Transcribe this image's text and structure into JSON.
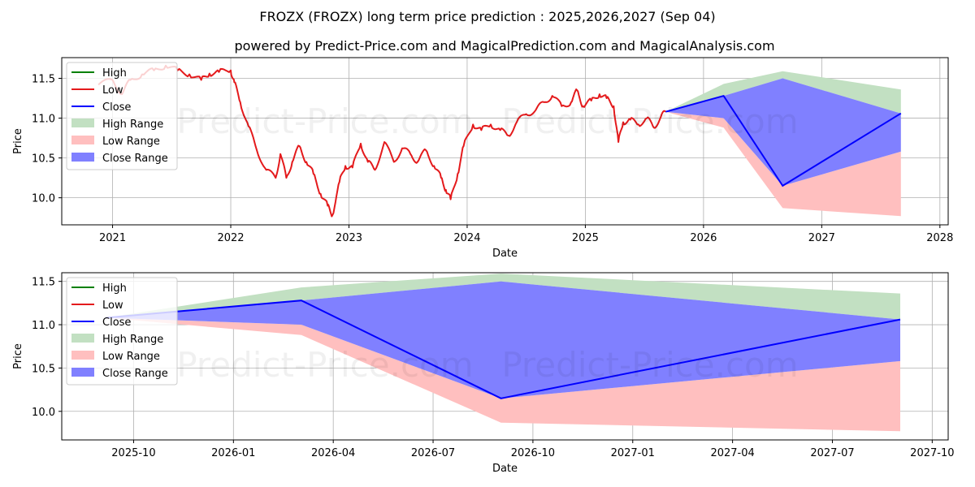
{
  "title": "FROZX (FROZX) long term price prediction : 2025,2026,2027 (Sep 04)",
  "subtitle": "powered by Predict-Price.com and MagicalPrediction.com and MagicalAnalysis.com",
  "watermark": "Predict-Price.com",
  "colors": {
    "high": "#008000",
    "low": "#e41a1c",
    "close": "#0000ff",
    "high_range": "#c2e0c2",
    "low_range": "#ffbfbf",
    "close_range": "#8080ff"
  },
  "chart_data": [
    {
      "type": "line",
      "name": "top",
      "xlabel": "Date",
      "ylabel": "Price",
      "xlim": [
        2020.57,
        2028.07
      ],
      "ylim": [
        9.66,
        11.76
      ],
      "x_ticks": [
        {
          "value": 2021.0,
          "label": "2021"
        },
        {
          "value": 2022.0,
          "label": "2022"
        },
        {
          "value": 2023.0,
          "label": "2023"
        },
        {
          "value": 2024.0,
          "label": "2024"
        },
        {
          "value": 2025.0,
          "label": "2025"
        },
        {
          "value": 2026.0,
          "label": "2026"
        },
        {
          "value": 2027.0,
          "label": "2027"
        },
        {
          "value": 2028.0,
          "label": "2028"
        }
      ],
      "y_ticks": [
        {
          "value": 10.0,
          "label": "10.0"
        },
        {
          "value": 10.5,
          "label": "10.5"
        },
        {
          "value": 11.0,
          "label": "11.0"
        },
        {
          "value": 11.5,
          "label": "11.5"
        }
      ],
      "legend": [
        "High",
        "Low",
        "Close",
        "High Range",
        "Low Range",
        "Close Range"
      ],
      "legend_position": "upper-left",
      "history": {
        "x": [
          2020.88,
          2021.0,
          2021.08,
          2021.15,
          2021.25,
          2021.35,
          2021.45,
          2021.55,
          2021.65,
          2021.75,
          2021.82,
          2021.9,
          2022.0,
          2022.03,
          2022.08,
          2022.15,
          2022.22,
          2022.3,
          2022.38,
          2022.42,
          2022.47,
          2022.52,
          2022.58,
          2022.64,
          2022.7,
          2022.76,
          2022.82,
          2022.86,
          2022.92,
          2022.97,
          2023.03,
          2023.1,
          2023.16,
          2023.22,
          2023.3,
          2023.38,
          2023.45,
          2023.52,
          2023.58,
          2023.65,
          2023.72,
          2023.78,
          2023.82,
          2023.86,
          2023.92,
          2023.97,
          2024.05,
          2024.12,
          2024.2,
          2024.28,
          2024.35,
          2024.42,
          2024.5,
          2024.58,
          2024.65,
          2024.72,
          2024.8,
          2024.88,
          2024.93,
          2024.98,
          2025.05,
          2025.12,
          2025.18,
          2025.24,
          2025.28,
          2025.32,
          2025.38,
          2025.45,
          2025.52,
          2025.58,
          2025.64,
          2025.68
        ],
        "low": [
          11.42,
          11.48,
          11.3,
          11.48,
          11.55,
          11.6,
          11.66,
          11.6,
          11.55,
          11.48,
          11.56,
          11.58,
          11.6,
          11.45,
          11.2,
          10.9,
          10.6,
          10.35,
          10.25,
          10.55,
          10.25,
          10.45,
          10.65,
          10.45,
          10.3,
          10.05,
          9.9,
          9.78,
          10.2,
          10.4,
          10.38,
          10.68,
          10.45,
          10.35,
          10.7,
          10.45,
          10.62,
          10.55,
          10.45,
          10.6,
          10.4,
          10.25,
          10.1,
          9.98,
          10.3,
          10.65,
          10.92,
          10.85,
          10.92,
          10.85,
          10.78,
          10.95,
          11.05,
          11.1,
          11.2,
          11.28,
          11.15,
          11.2,
          11.35,
          11.15,
          11.22,
          11.3,
          11.25,
          11.15,
          10.7,
          10.95,
          10.98,
          10.92,
          11.0,
          10.88,
          11.02,
          11.08
        ]
      },
      "forecast": {
        "x": [
          2025.68,
          2026.17,
          2026.67,
          2027.67
        ],
        "high_upper": [
          11.08,
          11.43,
          11.59,
          11.36
        ],
        "low_lower": [
          11.08,
          10.88,
          9.87,
          9.77
        ],
        "low_upper": [
          11.08,
          11.0,
          10.15,
          10.58
        ],
        "close_upper": [
          11.08,
          11.28,
          11.5,
          11.06
        ],
        "close": [
          11.08,
          11.28,
          10.15,
          11.06
        ]
      }
    },
    {
      "type": "line",
      "name": "bottom",
      "xlabel": "Date",
      "ylabel": "Price",
      "xlim": [
        2025.57,
        2027.79
      ],
      "ylim": [
        9.67,
        11.6
      ],
      "x_ticks": [
        {
          "value": 2025.75,
          "label": "2025-10"
        },
        {
          "value": 2026.0,
          "label": "2026-01"
        },
        {
          "value": 2026.25,
          "label": "2026-04"
        },
        {
          "value": 2026.5,
          "label": "2026-07"
        },
        {
          "value": 2026.75,
          "label": "2026-10"
        },
        {
          "value": 2027.0,
          "label": "2027-01"
        },
        {
          "value": 2027.25,
          "label": "2027-04"
        },
        {
          "value": 2027.5,
          "label": "2027-07"
        },
        {
          "value": 2027.75,
          "label": "2027-10"
        }
      ],
      "y_ticks": [
        {
          "value": 10.0,
          "label": "10.0"
        },
        {
          "value": 10.5,
          "label": "10.5"
        },
        {
          "value": 11.0,
          "label": "11.0"
        },
        {
          "value": 11.5,
          "label": "11.5"
        }
      ],
      "legend": [
        "High",
        "Low",
        "Close",
        "High Range",
        "Low Range",
        "Close Range"
      ],
      "legend_position": "upper-left",
      "forecast": {
        "x": [
          2025.68,
          2026.17,
          2026.67,
          2027.67
        ],
        "high_upper": [
          11.08,
          11.43,
          11.59,
          11.36
        ],
        "low_lower": [
          11.08,
          10.88,
          9.87,
          9.77
        ],
        "low_upper": [
          11.08,
          11.0,
          10.15,
          10.58
        ],
        "close_upper": [
          11.08,
          11.28,
          11.5,
          11.06
        ],
        "close": [
          11.08,
          11.28,
          10.15,
          11.06
        ]
      }
    }
  ]
}
